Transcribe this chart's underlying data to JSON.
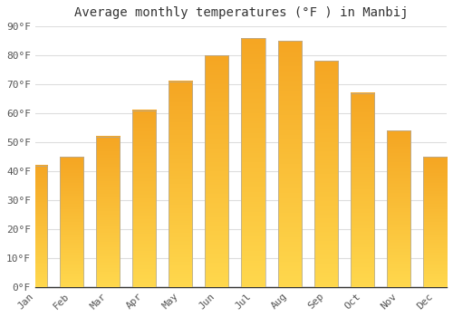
{
  "title": "Average monthly temperatures (°F ) in Manbij",
  "months": [
    "Jan",
    "Feb",
    "Mar",
    "Apr",
    "May",
    "Jun",
    "Jul",
    "Aug",
    "Sep",
    "Oct",
    "Nov",
    "Dec"
  ],
  "values": [
    42,
    45,
    52,
    61,
    71,
    80,
    86,
    85,
    78,
    67,
    54,
    45
  ],
  "bar_color_top": "#F5A623",
  "bar_color_bottom": "#FFD84D",
  "background_color": "#FFFFFF",
  "grid_color": "#DDDDDD",
  "ylim": [
    0,
    90
  ],
  "yticks": [
    0,
    10,
    20,
    30,
    40,
    50,
    60,
    70,
    80,
    90
  ],
  "ytick_labels": [
    "0°F",
    "10°F",
    "20°F",
    "30°F",
    "40°F",
    "50°F",
    "60°F",
    "70°F",
    "80°F",
    "90°F"
  ],
  "title_fontsize": 10,
  "tick_fontsize": 8,
  "font_family": "monospace",
  "bar_width": 0.65,
  "gradient_steps": 100
}
